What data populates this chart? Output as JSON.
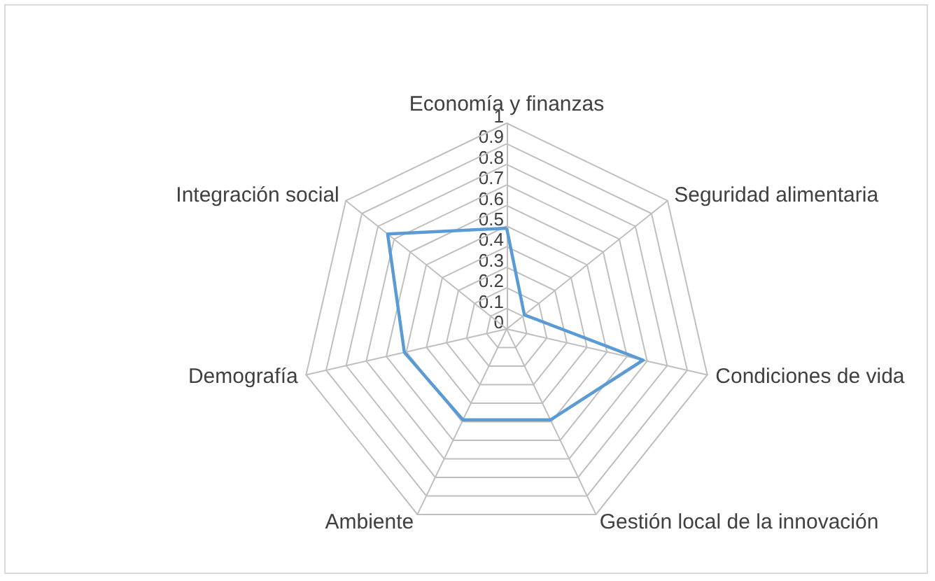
{
  "chart_data": {
    "type": "radar",
    "categories": [
      "Economía y finanzas",
      "Seguridad alimentaria",
      "Condiciones de vida",
      "Gestión local de la innovación",
      "Ambiente",
      "Demografía",
      "Integración social"
    ],
    "series": [
      {
        "color": "#5b9bd5",
        "values": [
          0.49,
          0.11,
          0.68,
          0.49,
          0.49,
          0.51,
          0.74
        ]
      }
    ],
    "ylim": [
      0,
      1
    ],
    "yticks": [
      0,
      0.1,
      0.2,
      0.3,
      0.4,
      0.5,
      0.6,
      0.7,
      0.8,
      0.9,
      1
    ],
    "grid": true,
    "marker": "none"
  }
}
